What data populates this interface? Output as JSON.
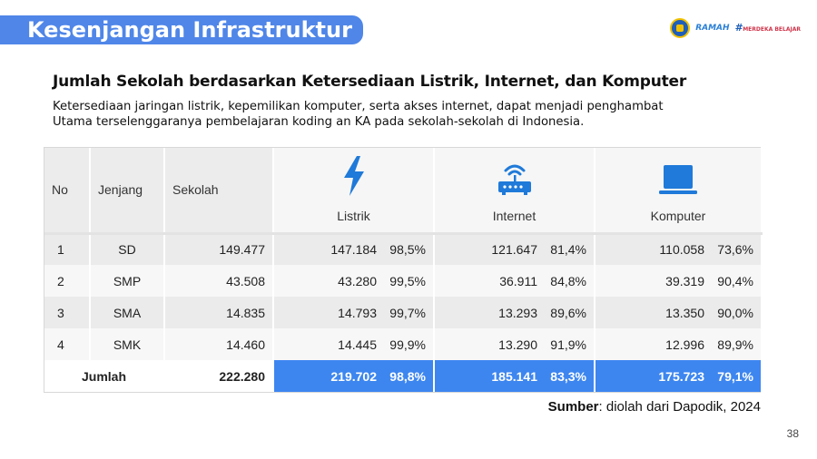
{
  "banner": {
    "title": "Kesenjangan Infrastruktur"
  },
  "logos": {
    "ramah": "RAMAH",
    "merdeka_hash": "#",
    "merdeka_text": "MERDEKA BELAJAR"
  },
  "heading": "Jumlah Sekolah berdasarkan Ketersediaan Listrik, Internet, dan Komputer",
  "description": "Ketersediaan jaringan listrik, kepemilikan komputer, serta akses internet, dapat menjadi penghambat Utama terselenggaranya pembelajaran koding an KA pada sekolah-sekolah di Indonesia.",
  "table": {
    "headers": {
      "no": "No",
      "jenjang": "Jenjang",
      "sekolah": "Sekolah",
      "listrik": "Listrik",
      "internet": "Internet",
      "komputer": "Komputer"
    },
    "icons": {
      "listrik": "lightning-icon",
      "internet": "router-icon",
      "komputer": "laptop-icon"
    },
    "rows": [
      {
        "no": "1",
        "jenjang": "SD",
        "sekolah": "149.477",
        "listrik": "147.184",
        "listrik_pct": "98,5%",
        "internet": "121.647",
        "internet_pct": "81,4%",
        "komputer": "110.058",
        "komputer_pct": "73,6%"
      },
      {
        "no": "2",
        "jenjang": "SMP",
        "sekolah": "43.508",
        "listrik": "43.280",
        "listrik_pct": "99,5%",
        "internet": "36.911",
        "internet_pct": "84,8%",
        "komputer": "39.319",
        "komputer_pct": "90,4%"
      },
      {
        "no": "3",
        "jenjang": "SMA",
        "sekolah": "14.835",
        "listrik": "14.793",
        "listrik_pct": "99,7%",
        "internet": "13.293",
        "internet_pct": "89,6%",
        "komputer": "13.350",
        "komputer_pct": "90,0%"
      },
      {
        "no": "4",
        "jenjang": "SMK",
        "sekolah": "14.460",
        "listrik": "14.445",
        "listrik_pct": "99,9%",
        "internet": "13.290",
        "internet_pct": "91,9%",
        "komputer": "12.996",
        "komputer_pct": "89,9%"
      }
    ],
    "total": {
      "label": "Jumlah",
      "sekolah": "222.280",
      "listrik": "219.702",
      "listrik_pct": "98,8%",
      "internet": "185.141",
      "internet_pct": "83,3%",
      "komputer": "175.723",
      "komputer_pct": "79,1%"
    }
  },
  "source": {
    "label": "Sumber",
    "text": ": diolah dari Dapodik, 2024"
  },
  "page_number": "38",
  "colors": {
    "banner": "#4f86e8",
    "total_highlight": "#3d86f0",
    "icon": "#1f7ad9"
  }
}
